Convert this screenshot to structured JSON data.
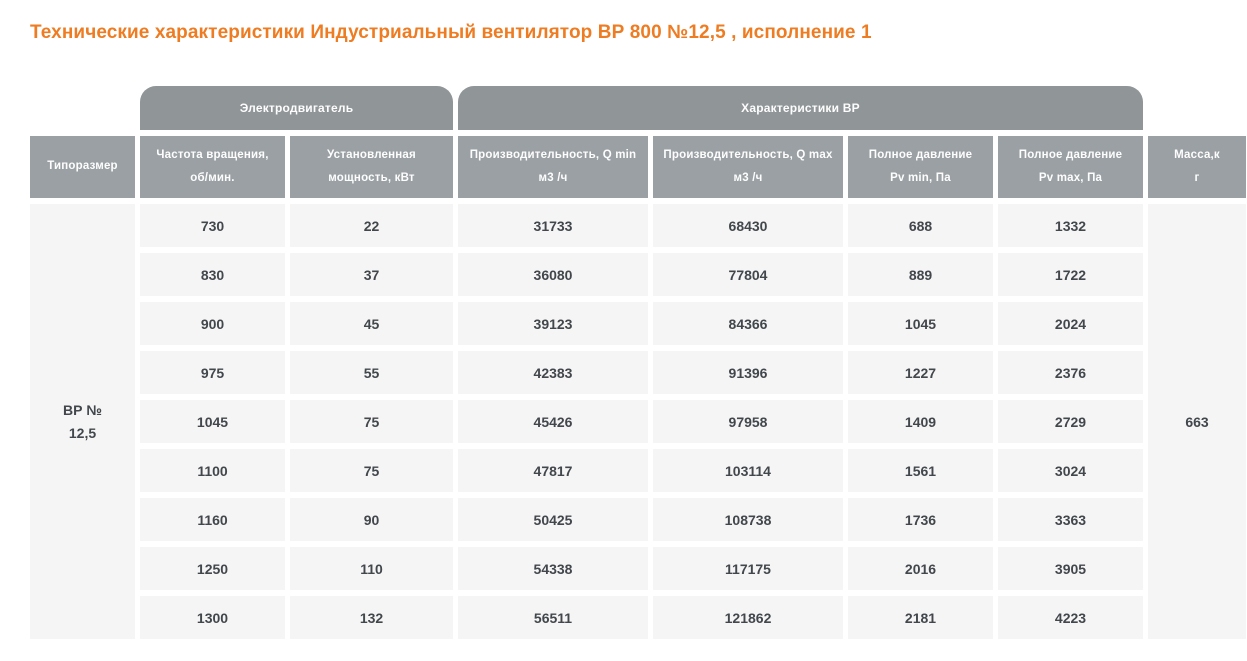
{
  "page": {
    "title": "Технические характеристики Индустриальный вентилятор ВР 800 №12,5 , исполнение 1"
  },
  "colors": {
    "accent_orange": "#ee7c22",
    "tab_gray": "#909598",
    "header_gray": "#9aa0a3",
    "cell_bg": "#f5f5f5",
    "cell_text": "#42474c"
  },
  "table": {
    "groups": [
      {
        "label": "Электродвигатель"
      },
      {
        "label": "Характеристики ВР"
      }
    ],
    "columns": [
      {
        "line1": "Типоразмер",
        "line2": ""
      },
      {
        "line1": "Частота вращения,",
        "line2": "об/мин."
      },
      {
        "line1": "Установленная",
        "line2": "мощность, кВт"
      },
      {
        "line1": "Производительность, Q min",
        "line2": "м3 /ч"
      },
      {
        "line1": "Производительность, Q max",
        "line2": "м3 /ч"
      },
      {
        "line1": "Полное давление",
        "line2": "Pv min, Па"
      },
      {
        "line1": "Полное давление",
        "line2": "Pv max, Па"
      },
      {
        "line1": "Масса,к",
        "line2": "г"
      }
    ],
    "size_label_line1": "ВР №",
    "size_label_line2": "12,5",
    "mass_value": "663",
    "rows": [
      [
        "730",
        "22",
        "31733",
        "68430",
        "688",
        "1332"
      ],
      [
        "830",
        "37",
        "36080",
        "77804",
        "889",
        "1722"
      ],
      [
        "900",
        "45",
        "39123",
        "84366",
        "1045",
        "2024"
      ],
      [
        "975",
        "55",
        "42383",
        "91396",
        "1227",
        "2376"
      ],
      [
        "1045",
        "75",
        "45426",
        "97958",
        "1409",
        "2729"
      ],
      [
        "1100",
        "75",
        "47817",
        "103114",
        "1561",
        "3024"
      ],
      [
        "1160",
        "90",
        "50425",
        "108738",
        "1736",
        "3363"
      ],
      [
        "1250",
        "110",
        "54338",
        "117175",
        "2016",
        "3905"
      ],
      [
        "1300",
        "132",
        "56511",
        "121862",
        "2181",
        "4223"
      ]
    ]
  }
}
